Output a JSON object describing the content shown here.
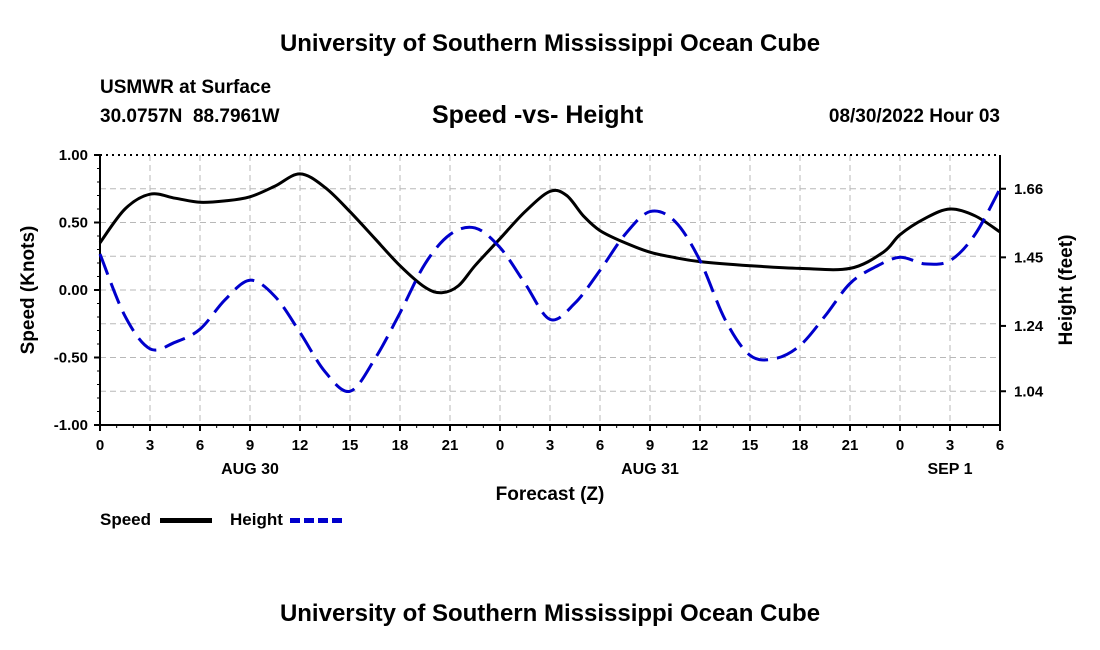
{
  "page": {
    "top_title": "University of Southern Mississippi Ocean Cube",
    "bottom_title": "University of Southern Mississippi Ocean Cube",
    "station_name": "USMWR at Surface",
    "station_coords": "30.0757N  88.7961W",
    "chart_title": "Speed -vs- Height",
    "datetime": "08/30/2022 Hour 03"
  },
  "legend": [
    {
      "label": "Speed",
      "color": "#000000",
      "dash": "solid"
    },
    {
      "label": "Height",
      "color": "#0000cc",
      "dash": "dashed"
    }
  ],
  "chart_data": {
    "type": "line",
    "xlabel": "Forecast (Z)",
    "ylabel_left": "Speed (Knots)",
    "ylabel_right": "Height (feet)",
    "x_hours_range": [
      0,
      54
    ],
    "x_tick_labels": [
      "0",
      "3",
      "6",
      "9",
      "12",
      "15",
      "18",
      "21",
      "0",
      "3",
      "6",
      "9",
      "12",
      "15",
      "18",
      "21",
      "0",
      "3",
      "6"
    ],
    "date_labels": [
      {
        "label": "AUG 30",
        "hour": 9
      },
      {
        "label": "AUG 31",
        "hour": 33
      },
      {
        "label": "SEP 1",
        "hour": 51
      }
    ],
    "ylim_left": [
      -1.0,
      1.0
    ],
    "yticks_left": [
      "1.00",
      "0.50",
      "0.00",
      "-0.50",
      "-1.00"
    ],
    "yticks_left_values": [
      1.0,
      0.5,
      0.0,
      -0.5,
      -1.0
    ],
    "yticks_right": [
      "1.66",
      "1.45",
      "1.24",
      "1.04"
    ],
    "yticks_right_values": [
      1.66,
      1.45,
      1.24,
      1.04
    ],
    "right_axis_map": {
      "height": [
        1.04,
        1.66
      ],
      "speed_equiv": [
        -0.75,
        0.75
      ]
    },
    "grid": true,
    "series": [
      {
        "name": "Speed",
        "axis": "left",
        "color": "#000000",
        "x": [
          0,
          1.5,
          3,
          4.5,
          6,
          7.5,
          9,
          10.5,
          12,
          13.5,
          15,
          16.5,
          18,
          19.5,
          20.5,
          21.5,
          22.5,
          24,
          25.5,
          27,
          28,
          29,
          30,
          31.5,
          33,
          34.5,
          36,
          39,
          42,
          45,
          47,
          48,
          49.5,
          51,
          52.5,
          54
        ],
        "values": [
          0.35,
          0.6,
          0.71,
          0.68,
          0.65,
          0.66,
          0.69,
          0.77,
          0.86,
          0.76,
          0.58,
          0.38,
          0.18,
          0.02,
          -0.02,
          0.03,
          0.18,
          0.38,
          0.58,
          0.73,
          0.7,
          0.55,
          0.44,
          0.35,
          0.28,
          0.24,
          0.21,
          0.18,
          0.16,
          0.16,
          0.28,
          0.41,
          0.53,
          0.6,
          0.55,
          0.43
        ]
      },
      {
        "name": "Height",
        "axis": "right",
        "color": "#0000cc",
        "x": [
          0,
          1.5,
          3,
          4.5,
          6,
          7.5,
          9,
          10.5,
          12,
          13.5,
          15,
          16.5,
          18,
          19.5,
          21,
          22.5,
          24,
          25.5,
          27,
          28.5,
          30,
          31.5,
          33,
          34.5,
          36,
          37.5,
          39,
          40.5,
          42,
          43.5,
          45,
          46.5,
          48,
          49.5,
          51,
          52.5,
          54
        ],
        "values": [
          1.46,
          1.27,
          1.17,
          1.19,
          1.23,
          1.32,
          1.38,
          1.33,
          1.22,
          1.1,
          1.04,
          1.14,
          1.28,
          1.43,
          1.52,
          1.54,
          1.48,
          1.37,
          1.26,
          1.31,
          1.41,
          1.52,
          1.59,
          1.56,
          1.44,
          1.26,
          1.15,
          1.14,
          1.18,
          1.27,
          1.37,
          1.42,
          1.45,
          1.43,
          1.44,
          1.52,
          1.66
        ]
      }
    ]
  }
}
